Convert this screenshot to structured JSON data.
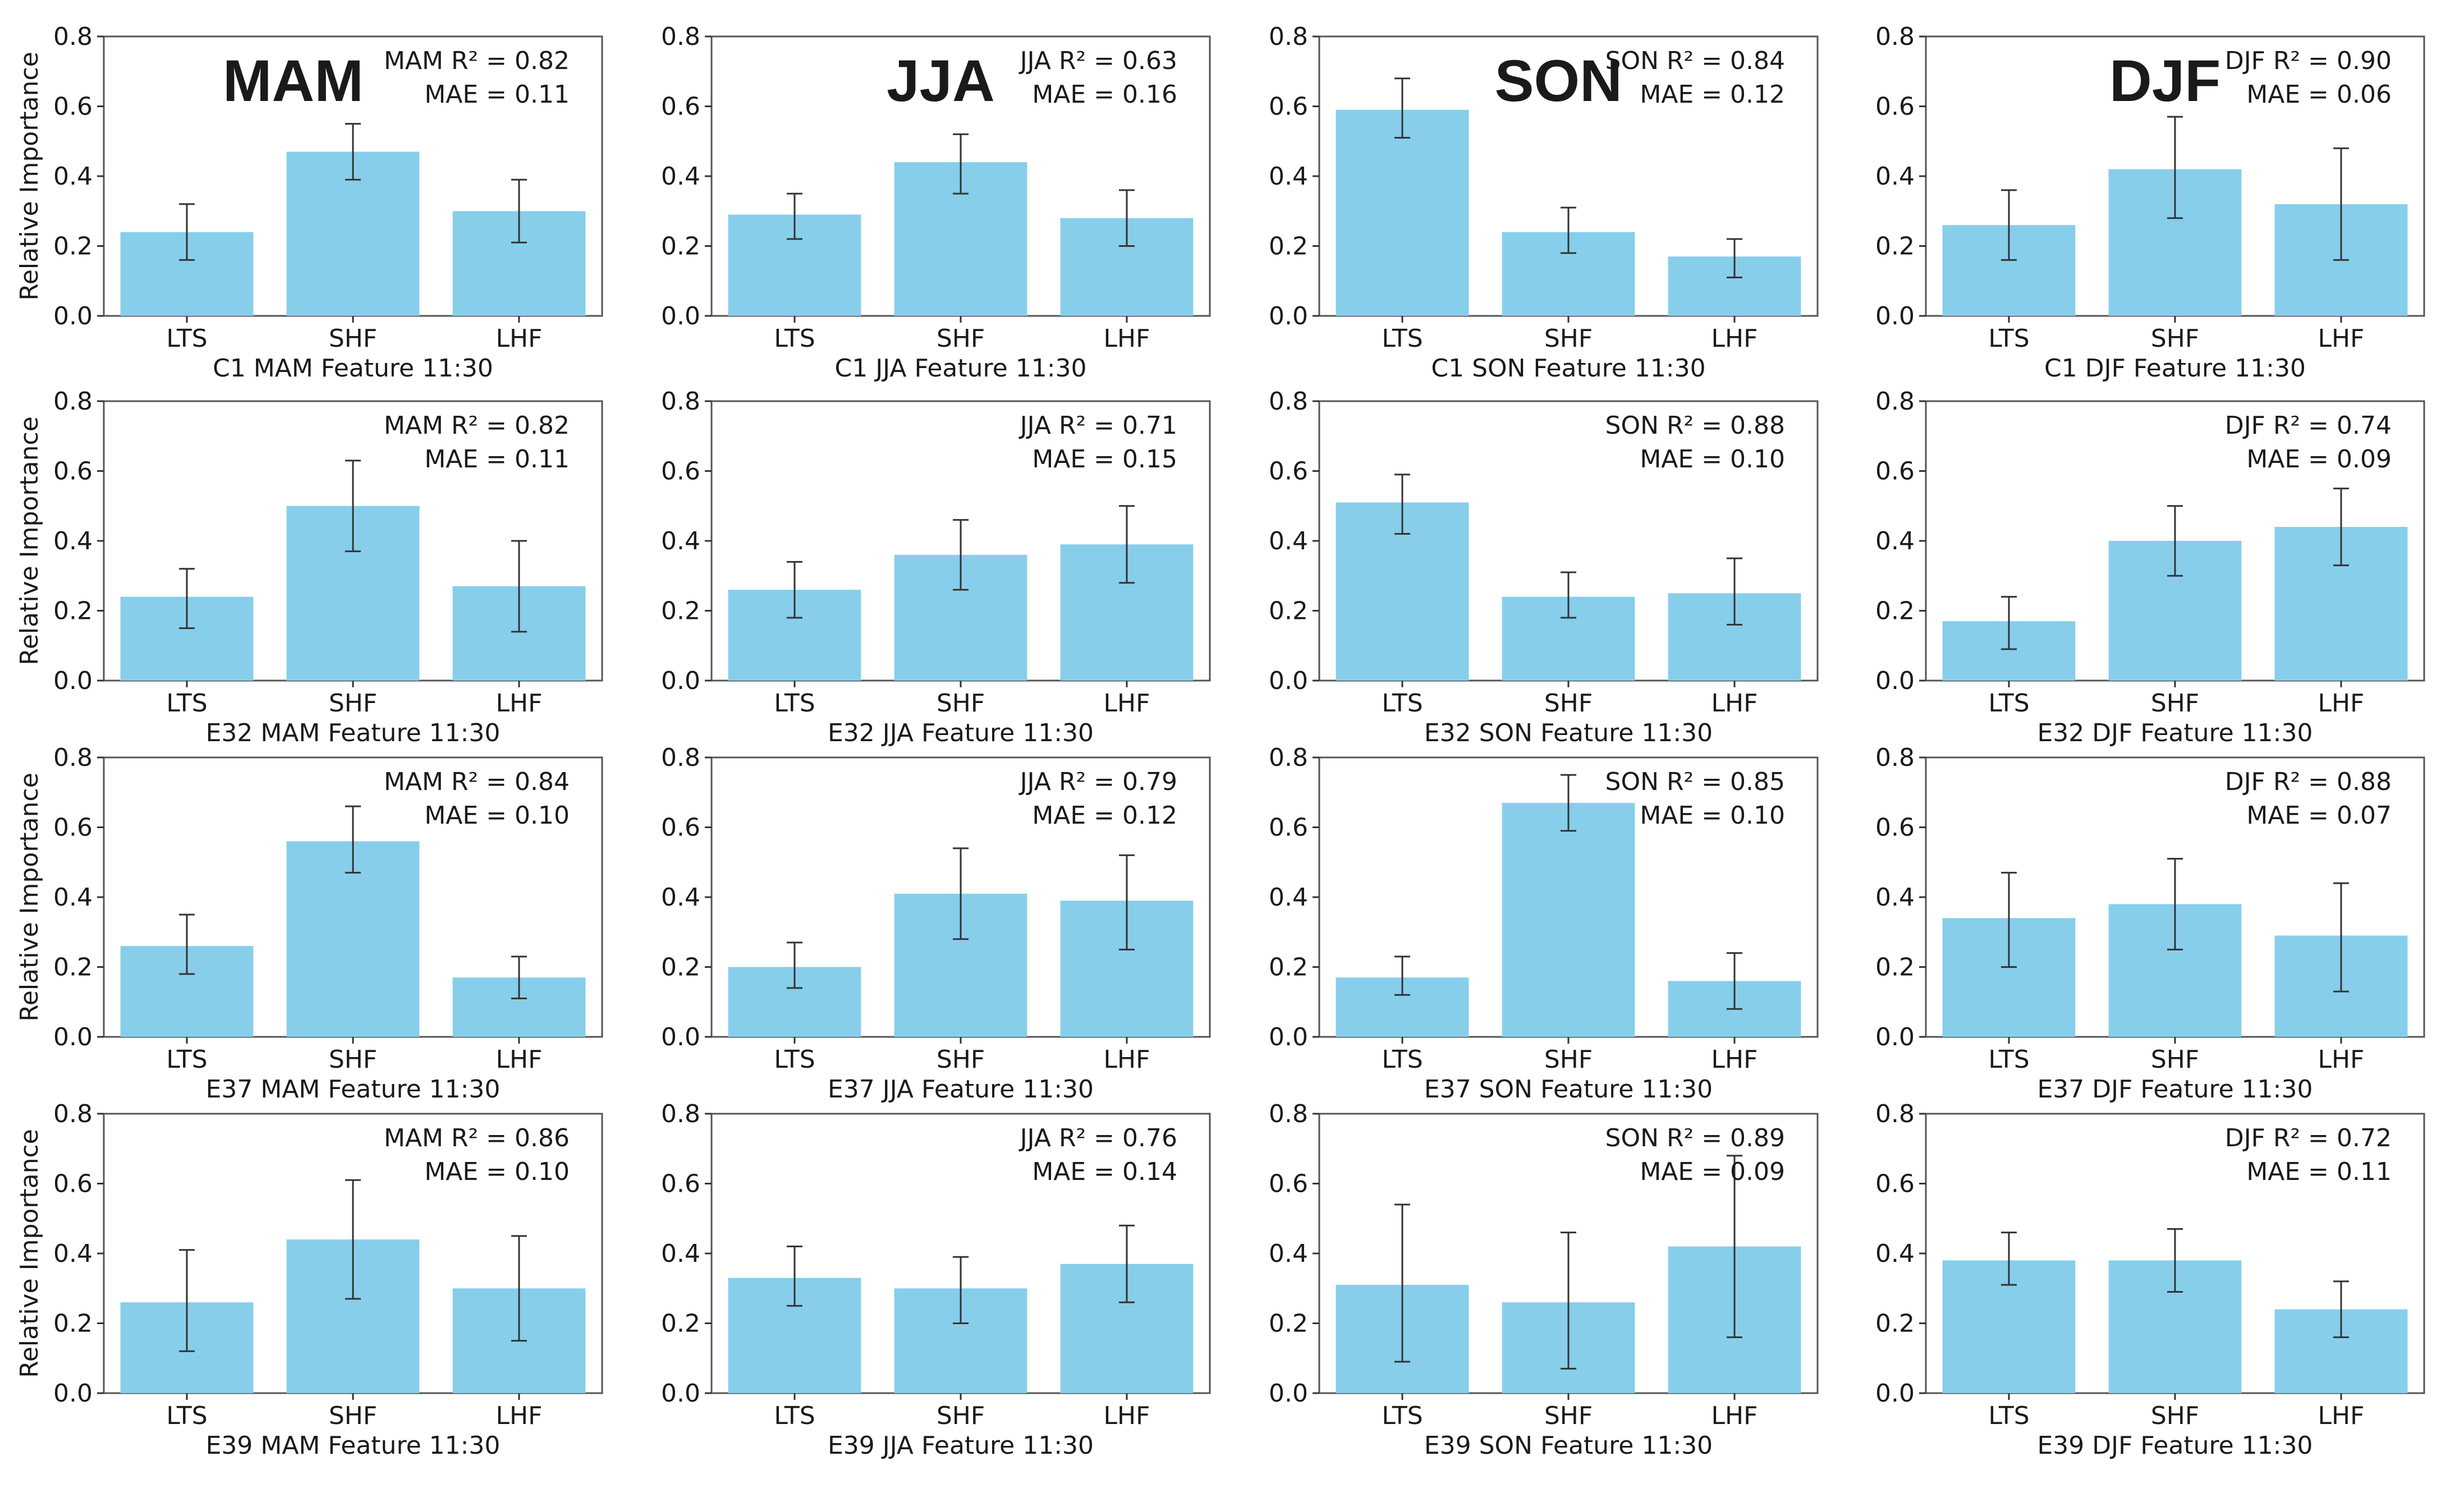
{
  "figure": {
    "ylabel": "Relative Importance",
    "season_headers": [
      {
        "text": "MAM",
        "color": "#e8141b"
      },
      {
        "text": "JJA",
        "color": "#e8141b"
      },
      {
        "text": "SON",
        "color": "#e8141b"
      },
      {
        "text": "DJF",
        "color": "#e8141b"
      }
    ],
    "bar_color": "#87ceeb",
    "error_color": "#333333"
  },
  "chart_data": [
    {
      "type": "bar",
      "title": "C1 MAM Feature 11:30",
      "categories": [
        "LTS",
        "SHF",
        "LHF"
      ],
      "values": [
        0.24,
        0.47,
        0.3
      ],
      "errors": [
        [
          0.16,
          0.32
        ],
        [
          0.39,
          0.55
        ],
        [
          0.21,
          0.39
        ]
      ],
      "ylim": [
        0,
        0.8
      ],
      "yticks": [
        "0.0",
        "0.2",
        "0.4",
        "0.6",
        "0.8"
      ],
      "stats": [
        "MAM R² = 0.82",
        "MAE = 0.11"
      ]
    },
    {
      "type": "bar",
      "title": "C1 JJA Feature 11:30",
      "categories": [
        "LTS",
        "SHF",
        "LHF"
      ],
      "values": [
        0.29,
        0.44,
        0.28
      ],
      "errors": [
        [
          0.22,
          0.35
        ],
        [
          0.35,
          0.52
        ],
        [
          0.2,
          0.36
        ]
      ],
      "ylim": [
        0,
        0.8
      ],
      "yticks": [
        "0.0",
        "0.2",
        "0.4",
        "0.6",
        "0.8"
      ],
      "stats": [
        "JJA R² = 0.63",
        "MAE = 0.16"
      ]
    },
    {
      "type": "bar",
      "title": "C1 SON Feature 11:30",
      "categories": [
        "LTS",
        "SHF",
        "LHF"
      ],
      "values": [
        0.59,
        0.24,
        0.17
      ],
      "errors": [
        [
          0.51,
          0.68
        ],
        [
          0.18,
          0.31
        ],
        [
          0.11,
          0.22
        ]
      ],
      "ylim": [
        0,
        0.8
      ],
      "yticks": [
        "0.0",
        "0.2",
        "0.4",
        "0.6",
        "0.8"
      ],
      "stats": [
        "SON R² = 0.84",
        "MAE = 0.12"
      ]
    },
    {
      "type": "bar",
      "title": "C1 DJF Feature 11:30",
      "categories": [
        "LTS",
        "SHF",
        "LHF"
      ],
      "values": [
        0.26,
        0.42,
        0.32
      ],
      "errors": [
        [
          0.16,
          0.36
        ],
        [
          0.28,
          0.57
        ],
        [
          0.16,
          0.48
        ]
      ],
      "ylim": [
        0,
        0.8
      ],
      "yticks": [
        "0.0",
        "0.2",
        "0.4",
        "0.6",
        "0.8"
      ],
      "stats": [
        "DJF R² = 0.90",
        "MAE = 0.06"
      ]
    },
    {
      "type": "bar",
      "title": "E32 MAM Feature 11:30",
      "categories": [
        "LTS",
        "SHF",
        "LHF"
      ],
      "values": [
        0.24,
        0.5,
        0.27
      ],
      "errors": [
        [
          0.15,
          0.32
        ],
        [
          0.37,
          0.63
        ],
        [
          0.14,
          0.4
        ]
      ],
      "ylim": [
        0,
        0.8
      ],
      "yticks": [
        "0.0",
        "0.2",
        "0.4",
        "0.6",
        "0.8"
      ],
      "stats": [
        "MAM R² = 0.82",
        "MAE = 0.11"
      ]
    },
    {
      "type": "bar",
      "title": "E32 JJA Feature 11:30",
      "categories": [
        "LTS",
        "SHF",
        "LHF"
      ],
      "values": [
        0.26,
        0.36,
        0.39
      ],
      "errors": [
        [
          0.18,
          0.34
        ],
        [
          0.26,
          0.46
        ],
        [
          0.28,
          0.5
        ]
      ],
      "ylim": [
        0,
        0.8
      ],
      "yticks": [
        "0.0",
        "0.2",
        "0.4",
        "0.6",
        "0.8"
      ],
      "stats": [
        "JJA R² = 0.71",
        "MAE = 0.15"
      ]
    },
    {
      "type": "bar",
      "title": "E32 SON Feature 11:30",
      "categories": [
        "LTS",
        "SHF",
        "LHF"
      ],
      "values": [
        0.51,
        0.24,
        0.25
      ],
      "errors": [
        [
          0.42,
          0.59
        ],
        [
          0.18,
          0.31
        ],
        [
          0.16,
          0.35
        ]
      ],
      "ylim": [
        0,
        0.8
      ],
      "yticks": [
        "0.0",
        "0.2",
        "0.4",
        "0.6",
        "0.8"
      ],
      "stats": [
        "SON R² = 0.88",
        "MAE = 0.10"
      ]
    },
    {
      "type": "bar",
      "title": "E32 DJF Feature 11:30",
      "categories": [
        "LTS",
        "SHF",
        "LHF"
      ],
      "values": [
        0.17,
        0.4,
        0.44
      ],
      "errors": [
        [
          0.09,
          0.24
        ],
        [
          0.3,
          0.5
        ],
        [
          0.33,
          0.55
        ]
      ],
      "ylim": [
        0,
        0.8
      ],
      "yticks": [
        "0.0",
        "0.2",
        "0.4",
        "0.6",
        "0.8"
      ],
      "stats": [
        "DJF R² = 0.74",
        "MAE = 0.09"
      ]
    },
    {
      "type": "bar",
      "title": "E37 MAM Feature 11:30",
      "categories": [
        "LTS",
        "SHF",
        "LHF"
      ],
      "values": [
        0.26,
        0.56,
        0.17
      ],
      "errors": [
        [
          0.18,
          0.35
        ],
        [
          0.47,
          0.66
        ],
        [
          0.11,
          0.23
        ]
      ],
      "ylim": [
        0,
        0.8
      ],
      "yticks": [
        "0.0",
        "0.2",
        "0.4",
        "0.6",
        "0.8"
      ],
      "stats": [
        "MAM R² = 0.84",
        "MAE = 0.10"
      ]
    },
    {
      "type": "bar",
      "title": "E37 JJA Feature 11:30",
      "categories": [
        "LTS",
        "SHF",
        "LHF"
      ],
      "values": [
        0.2,
        0.41,
        0.39
      ],
      "errors": [
        [
          0.14,
          0.27
        ],
        [
          0.28,
          0.54
        ],
        [
          0.25,
          0.52
        ]
      ],
      "ylim": [
        0,
        0.8
      ],
      "yticks": [
        "0.0",
        "0.2",
        "0.4",
        "0.6",
        "0.8"
      ],
      "stats": [
        "JJA R² = 0.79",
        "MAE = 0.12"
      ]
    },
    {
      "type": "bar",
      "title": "E37 SON Feature 11:30",
      "categories": [
        "LTS",
        "SHF",
        "LHF"
      ],
      "values": [
        0.17,
        0.67,
        0.16
      ],
      "errors": [
        [
          0.12,
          0.23
        ],
        [
          0.59,
          0.75
        ],
        [
          0.08,
          0.24
        ]
      ],
      "ylim": [
        0,
        0.8
      ],
      "yticks": [
        "0.0",
        "0.2",
        "0.4",
        "0.6",
        "0.8"
      ],
      "stats": [
        "SON R² = 0.85",
        "MAE = 0.10"
      ]
    },
    {
      "type": "bar",
      "title": "E37 DJF Feature 11:30",
      "categories": [
        "LTS",
        "SHF",
        "LHF"
      ],
      "values": [
        0.34,
        0.38,
        0.29
      ],
      "errors": [
        [
          0.2,
          0.47
        ],
        [
          0.25,
          0.51
        ],
        [
          0.13,
          0.44
        ]
      ],
      "ylim": [
        0,
        0.8
      ],
      "yticks": [
        "0.0",
        "0.2",
        "0.4",
        "0.6",
        "0.8"
      ],
      "stats": [
        "DJF R² = 0.88",
        "MAE = 0.07"
      ]
    },
    {
      "type": "bar",
      "title": "E39 MAM Feature 11:30",
      "categories": [
        "LTS",
        "SHF",
        "LHF"
      ],
      "values": [
        0.26,
        0.44,
        0.3
      ],
      "errors": [
        [
          0.12,
          0.41
        ],
        [
          0.27,
          0.61
        ],
        [
          0.15,
          0.45
        ]
      ],
      "ylim": [
        0,
        0.8
      ],
      "yticks": [
        "0.0",
        "0.2",
        "0.4",
        "0.6",
        "0.8"
      ],
      "stats": [
        "MAM R² = 0.86",
        "MAE = 0.10"
      ]
    },
    {
      "type": "bar",
      "title": "E39 JJA Feature 11:30",
      "categories": [
        "LTS",
        "SHF",
        "LHF"
      ],
      "values": [
        0.33,
        0.3,
        0.37
      ],
      "errors": [
        [
          0.25,
          0.42
        ],
        [
          0.2,
          0.39
        ],
        [
          0.26,
          0.48
        ]
      ],
      "ylim": [
        0,
        0.8
      ],
      "yticks": [
        "0.0",
        "0.2",
        "0.4",
        "0.6",
        "0.8"
      ],
      "stats": [
        "JJA R² = 0.76",
        "MAE = 0.14"
      ]
    },
    {
      "type": "bar",
      "title": "E39 SON Feature 11:30",
      "categories": [
        "LTS",
        "SHF",
        "LHF"
      ],
      "values": [
        0.31,
        0.26,
        0.42
      ],
      "errors": [
        [
          0.09,
          0.54
        ],
        [
          0.07,
          0.46
        ],
        [
          0.16,
          0.68
        ]
      ],
      "ylim": [
        0,
        0.8
      ],
      "yticks": [
        "0.0",
        "0.2",
        "0.4",
        "0.6",
        "0.8"
      ],
      "stats": [
        "SON R² = 0.89",
        "MAE = 0.09"
      ]
    },
    {
      "type": "bar",
      "title": "E39 DJF Feature 11:30",
      "categories": [
        "LTS",
        "SHF",
        "LHF"
      ],
      "values": [
        0.38,
        0.38,
        0.24
      ],
      "errors": [
        [
          0.31,
          0.46
        ],
        [
          0.29,
          0.47
        ],
        [
          0.16,
          0.32
        ]
      ],
      "ylim": [
        0,
        0.8
      ],
      "yticks": [
        "0.0",
        "0.2",
        "0.4",
        "0.6",
        "0.8"
      ],
      "stats": [
        "DJF R² = 0.72",
        "MAE = 0.11"
      ]
    }
  ]
}
